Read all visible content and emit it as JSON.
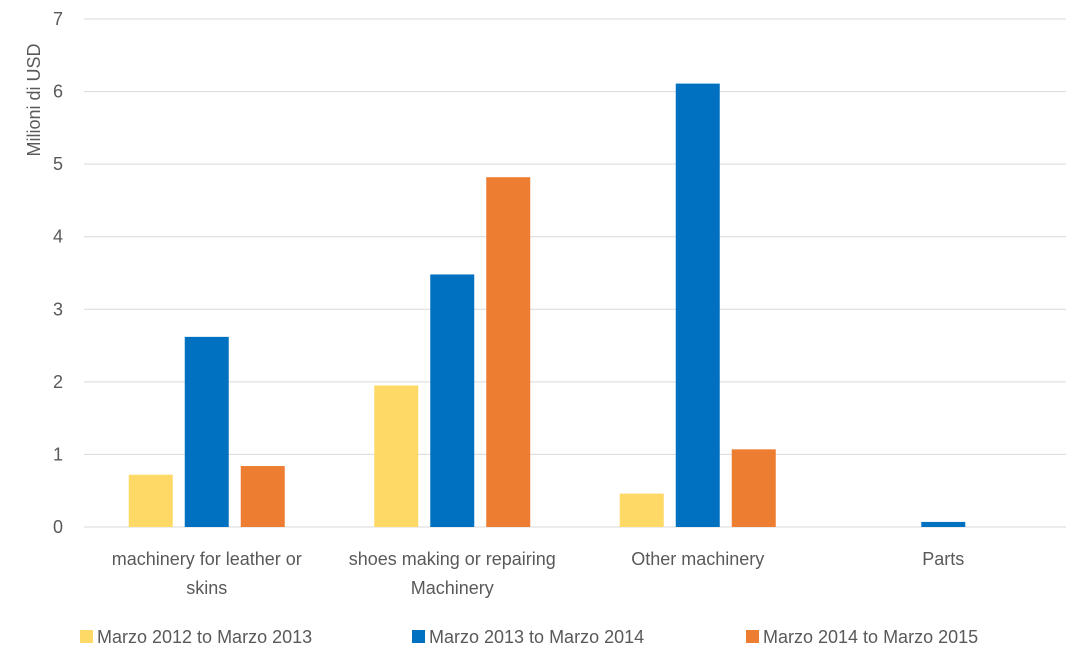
{
  "chart_data": {
    "type": "bar",
    "ylabel": "Milioni di USD",
    "xlabel": "",
    "ylim": [
      0,
      7
    ],
    "yticks": [
      "0",
      "1",
      "2",
      "3",
      "4",
      "5",
      "6",
      "7"
    ],
    "categories": [
      [
        "machinery for leather or",
        "skins"
      ],
      [
        "shoes making or repairing",
        "Machinery"
      ],
      [
        "Other machinery"
      ],
      [
        "Parts"
      ]
    ],
    "series": [
      {
        "name": "Marzo 2012 to Marzo 2013",
        "color": "#FFD966",
        "values": [
          0.72,
          1.95,
          0.46,
          0
        ]
      },
      {
        "name": "Marzo 2013 to Marzo 2014",
        "color": "#0070C0",
        "values": [
          2.62,
          3.48,
          6.11,
          0.07
        ]
      },
      {
        "name": "Marzo 2014 to Marzo 2015",
        "color": "#ED7D31",
        "values": [
          0.84,
          4.82,
          1.07,
          0
        ]
      }
    ],
    "grid": true,
    "legend_position": "bottom"
  }
}
